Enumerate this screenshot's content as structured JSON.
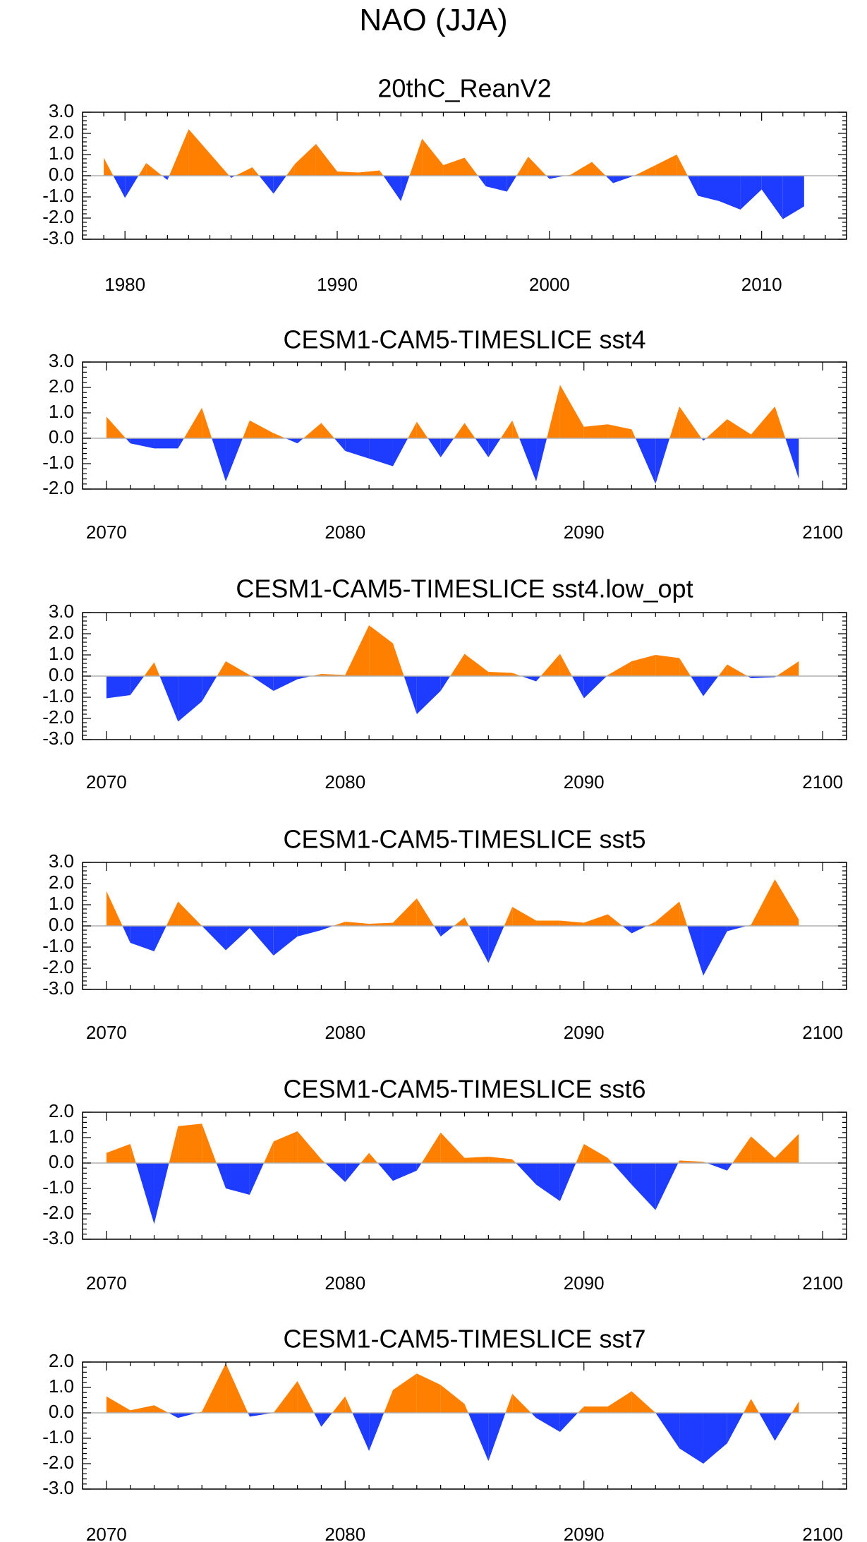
{
  "figure": {
    "title": "NAO (JJA)"
  },
  "colors": {
    "positive": "#ff8000",
    "negative": "#1e3cff",
    "zero_line": "#b0b0b0",
    "frame": "#000000"
  },
  "chart_data": [
    {
      "type": "area",
      "title": "20thC_ReanV2",
      "x": [
        1979,
        1980,
        1981,
        1982,
        1983,
        1984,
        1985,
        1986,
        1987,
        1988,
        1989,
        1990,
        1991,
        1992,
        1993,
        1994,
        1995,
        1996,
        1997,
        1998,
        1999,
        2000,
        2001,
        2002,
        2003,
        2004,
        2005,
        2006,
        2007,
        2008,
        2009,
        2010,
        2011,
        2012
      ],
      "values": [
        0.85,
        -1.05,
        0.6,
        -0.2,
        2.2,
        1.05,
        -0.1,
        0.4,
        -0.85,
        0.55,
        1.5,
        0.2,
        0.15,
        0.25,
        -1.2,
        1.75,
        0.5,
        0.85,
        -0.5,
        -0.75,
        0.9,
        -0.15,
        0.05,
        0.65,
        -0.35,
        0.0,
        0.5,
        1.0,
        -0.95,
        -1.2,
        -1.6,
        -0.65,
        -2.05,
        -1.45
      ],
      "xlim": [
        1978,
        2014
      ],
      "ylim": [
        -3.0,
        3.0
      ],
      "xticks": [
        1980,
        1990,
        2000,
        2010
      ],
      "xtick_labels": [
        "1980",
        "1990",
        "2000",
        "2010"
      ],
      "yticks": [
        3.0,
        2.0,
        1.0,
        0.0,
        -1.0,
        -2.0,
        -3.0
      ],
      "ytick_labels": [
        "3.0",
        "2.0",
        "1.0",
        "0.0",
        "-1.0",
        "-2.0",
        "-3.0"
      ]
    },
    {
      "type": "area",
      "title": "CESM1-CAM5-TIMESLICE sst4",
      "x": [
        2070,
        2071,
        2072,
        2073,
        2074,
        2075,
        2076,
        2077,
        2078,
        2079,
        2080,
        2081,
        2082,
        2083,
        2084,
        2085,
        2086,
        2087,
        2088,
        2089,
        2090,
        2091,
        2092,
        2093,
        2094,
        2095,
        2096,
        2097,
        2098,
        2099
      ],
      "values": [
        0.85,
        -0.2,
        -0.4,
        -0.4,
        1.2,
        -1.7,
        0.7,
        0.2,
        -0.2,
        0.6,
        -0.5,
        -0.8,
        -1.1,
        0.65,
        -0.75,
        0.6,
        -0.75,
        0.7,
        -1.7,
        2.1,
        0.45,
        0.55,
        0.35,
        -1.8,
        1.25,
        -0.1,
        0.75,
        0.15,
        1.25,
        -1.6
      ],
      "xlim": [
        2069,
        2101
      ],
      "ylim": [
        -2.0,
        3.0
      ],
      "xticks": [
        2070,
        2080,
        2090,
        2100
      ],
      "xtick_labels": [
        "2070",
        "2080",
        "2090",
        "2100"
      ],
      "yticks": [
        3.0,
        2.0,
        1.0,
        0.0,
        -1.0,
        -2.0
      ],
      "ytick_labels": [
        "3.0",
        "2.0",
        "1.0",
        "0.0",
        "-1.0",
        "-2.0"
      ]
    },
    {
      "type": "area",
      "title": "CESM1-CAM5-TIMESLICE sst4.low_opt",
      "x": [
        2070,
        2071,
        2072,
        2073,
        2074,
        2075,
        2076,
        2077,
        2078,
        2079,
        2080,
        2081,
        2082,
        2083,
        2084,
        2085,
        2086,
        2087,
        2088,
        2089,
        2090,
        2091,
        2092,
        2093,
        2094,
        2095,
        2096,
        2097,
        2098,
        2099
      ],
      "values": [
        -1.05,
        -0.9,
        0.65,
        -2.15,
        -1.2,
        0.7,
        0.05,
        -0.7,
        -0.15,
        0.1,
        0.05,
        2.4,
        1.55,
        -1.8,
        -0.7,
        1.05,
        0.2,
        0.15,
        -0.25,
        1.05,
        -1.05,
        0.05,
        0.7,
        1.0,
        0.85,
        -0.95,
        0.55,
        -0.1,
        -0.05,
        0.7
      ],
      "xlim": [
        2069,
        2101
      ],
      "ylim": [
        -3.0,
        3.0
      ],
      "xticks": [
        2070,
        2080,
        2090,
        2100
      ],
      "xtick_labels": [
        "2070",
        "2080",
        "2090",
        "2100"
      ],
      "yticks": [
        3.0,
        2.0,
        1.0,
        0.0,
        -1.0,
        -2.0,
        -3.0
      ],
      "ytick_labels": [
        "3.0",
        "2.0",
        "1.0",
        "0.0",
        "-1.0",
        "-2.0",
        "-3.0"
      ]
    },
    {
      "type": "area",
      "title": "CESM1-CAM5-TIMESLICE sst5",
      "x": [
        2070,
        2071,
        2072,
        2073,
        2074,
        2075,
        2076,
        2077,
        2078,
        2079,
        2080,
        2081,
        2082,
        2083,
        2084,
        2085,
        2086,
        2087,
        2088,
        2089,
        2090,
        2091,
        2092,
        2093,
        2094,
        2095,
        2096,
        2097,
        2098,
        2099
      ],
      "values": [
        1.65,
        -0.8,
        -1.2,
        1.15,
        0.0,
        -1.15,
        -0.1,
        -1.4,
        -0.5,
        -0.2,
        0.2,
        0.1,
        0.15,
        1.3,
        -0.5,
        0.4,
        -1.75,
        0.9,
        0.25,
        0.25,
        0.15,
        0.55,
        -0.35,
        0.2,
        1.15,
        -2.35,
        -0.25,
        0.05,
        2.2,
        0.3
      ],
      "xlim": [
        2069,
        2101
      ],
      "ylim": [
        -3.0,
        3.0
      ],
      "xticks": [
        2070,
        2080,
        2090,
        2100
      ],
      "xtick_labels": [
        "2070",
        "2080",
        "2090",
        "2100"
      ],
      "yticks": [
        3.0,
        2.0,
        1.0,
        0.0,
        -1.0,
        -2.0,
        -3.0
      ],
      "ytick_labels": [
        "3.0",
        "2.0",
        "1.0",
        "0.0",
        "-1.0",
        "-2.0",
        "-3.0"
      ]
    },
    {
      "type": "area",
      "title": "CESM1-CAM5-TIMESLICE sst6",
      "x": [
        2070,
        2071,
        2072,
        2073,
        2074,
        2075,
        2076,
        2077,
        2078,
        2079,
        2080,
        2081,
        2082,
        2083,
        2084,
        2085,
        2086,
        2087,
        2088,
        2089,
        2090,
        2091,
        2092,
        2093,
        2094,
        2095,
        2096,
        2097,
        2098,
        2099
      ],
      "values": [
        0.4,
        0.75,
        -2.4,
        1.45,
        1.55,
        -1.0,
        -1.25,
        0.85,
        1.25,
        0.15,
        -0.75,
        0.4,
        -0.7,
        -0.3,
        1.2,
        0.2,
        0.25,
        0.15,
        -0.85,
        -1.5,
        0.75,
        0.2,
        -0.85,
        -1.85,
        0.1,
        0.05,
        -0.3,
        1.05,
        0.2,
        1.15
      ],
      "xlim": [
        2069,
        2101
      ],
      "ylim": [
        -3.0,
        2.0
      ],
      "xticks": [
        2070,
        2080,
        2090,
        2100
      ],
      "xtick_labels": [
        "2070",
        "2080",
        "2090",
        "2100"
      ],
      "yticks": [
        2.0,
        1.0,
        0.0,
        -1.0,
        -2.0,
        -3.0
      ],
      "ytick_labels": [
        "2.0",
        "1.0",
        "0.0",
        "-1.0",
        "-2.0",
        "-3.0"
      ]
    },
    {
      "type": "area",
      "title": "CESM1-CAM5-TIMESLICE sst7",
      "x": [
        2070,
        2071,
        2072,
        2073,
        2074,
        2075,
        2076,
        2077,
        2078,
        2079,
        2080,
        2081,
        2082,
        2083,
        2084,
        2085,
        2086,
        2087,
        2088,
        2089,
        2090,
        2091,
        2092,
        2093,
        2094,
        2095,
        2096,
        2097,
        2098,
        2099
      ],
      "values": [
        0.65,
        0.1,
        0.3,
        -0.2,
        0.05,
        1.95,
        -0.15,
        0.0,
        1.25,
        -0.55,
        0.65,
        -1.5,
        0.9,
        1.55,
        1.1,
        0.35,
        -1.9,
        0.75,
        -0.2,
        -0.75,
        0.25,
        0.25,
        0.85,
        0.0,
        -1.4,
        -2.0,
        -1.2,
        0.55,
        -1.1,
        0.45
      ],
      "xlim": [
        2069,
        2101
      ],
      "ylim": [
        -3.0,
        2.0
      ],
      "xticks": [
        2070,
        2080,
        2090,
        2100
      ],
      "xtick_labels": [
        "2070",
        "2080",
        "2090",
        "2100"
      ],
      "yticks": [
        2.0,
        1.0,
        0.0,
        -1.0,
        -2.0,
        -3.0
      ],
      "ytick_labels": [
        "2.0",
        "1.0",
        "0.0",
        "-1.0",
        "-2.0",
        "-3.0"
      ]
    }
  ]
}
